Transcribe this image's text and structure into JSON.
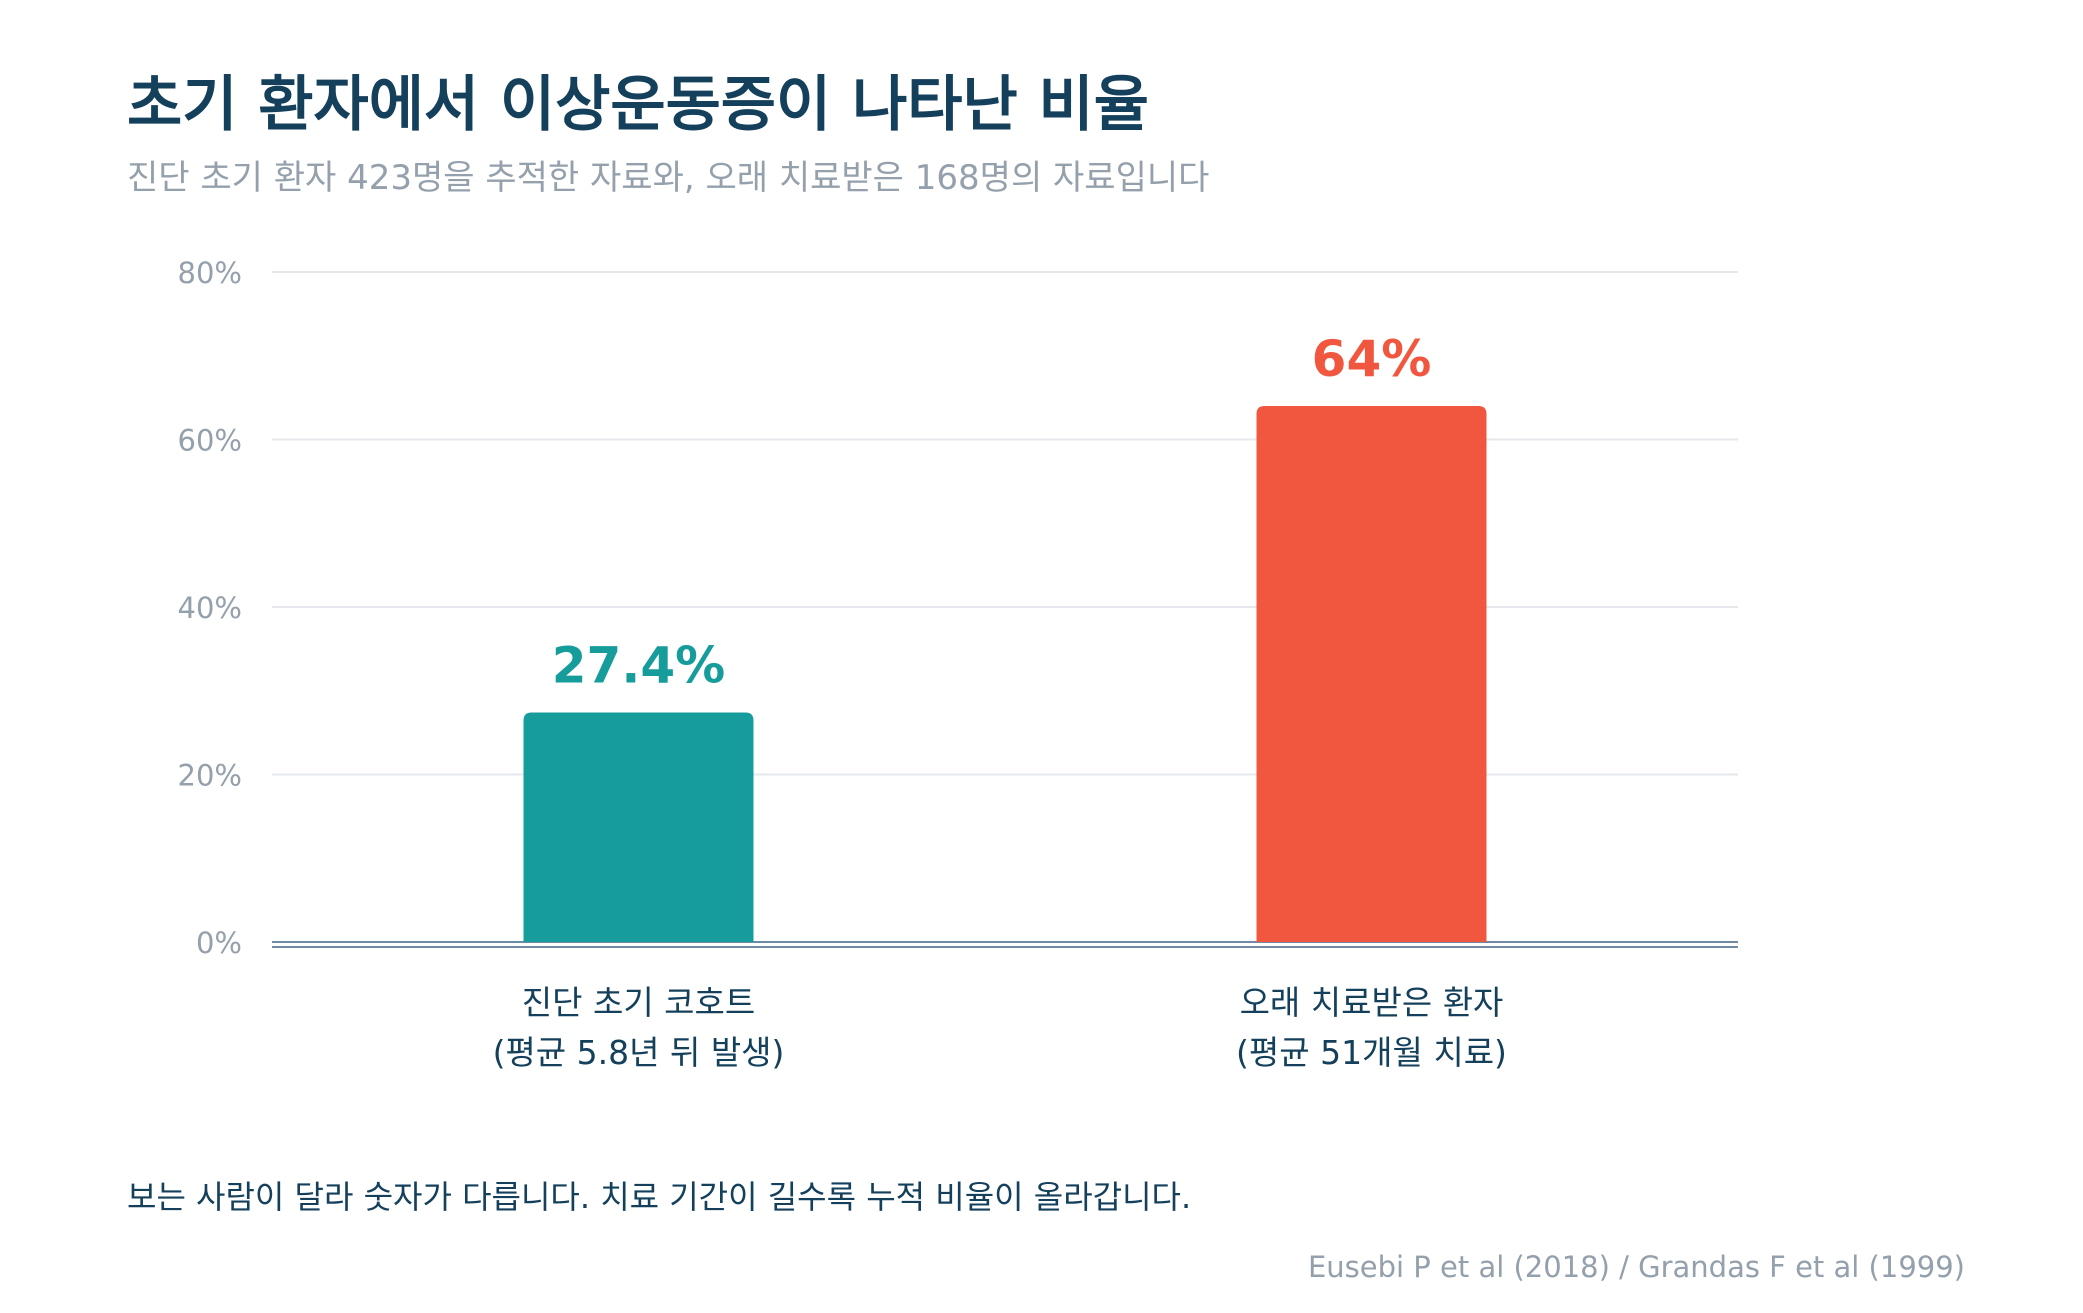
{
  "title": "초기 환자에서 이상운동증이 나타난 비율",
  "subtitle": "진단 초기 환자 423명을 추적한 자료와, 오래 치료받은 168명의 자료입니다",
  "footnote": "보는 사람이 달라 숫자가 다릅니다. 치료 기간이 길수록 누적 비율이 올라갑니다.",
  "source": "Eusebi P et al (2018) / Grandas F et al (1999)",
  "chart_data": {
    "type": "bar",
    "title": "초기 환자에서 이상운동증이 나타난 비율",
    "categories": [
      [
        "진단 초기 코호트",
        "(평균 5.8년 뒤 발생)"
      ],
      [
        "오래 치료받은 환자",
        "(평균 51개월 치료)"
      ]
    ],
    "values": [
      27.4,
      64
    ],
    "value_labels": [
      "27.4%",
      "64%"
    ],
    "colors": [
      "#179c9c",
      "#f0573e"
    ],
    "ylim": [
      0,
      80
    ],
    "yticks": [
      0,
      20,
      40,
      60,
      80
    ],
    "ytick_labels": [
      "0%",
      "20%",
      "40%",
      "60%",
      "80%"
    ],
    "grid": true,
    "xlabel": "",
    "ylabel": ""
  }
}
